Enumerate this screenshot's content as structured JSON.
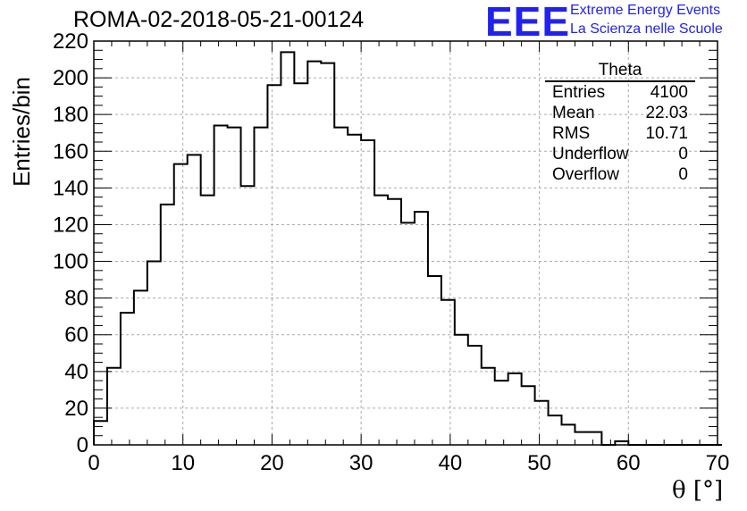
{
  "chart_data": {
    "type": "bar",
    "title": "ROMA-02-2018-05-21-00124",
    "xlabel": "θ [°]",
    "ylabel": "Entries/bin",
    "xlim": [
      0,
      70
    ],
    "ylim": [
      0,
      220
    ],
    "xticks": [
      0,
      10,
      20,
      30,
      40,
      50,
      60,
      70
    ],
    "yticks": [
      0,
      20,
      40,
      60,
      80,
      100,
      120,
      140,
      160,
      180,
      200,
      220
    ],
    "grid": true,
    "bin_width": 1.5,
    "bin_start": 0,
    "values": [
      13,
      42,
      72,
      84,
      100,
      131,
      153,
      158,
      136,
      174,
      173,
      141,
      173,
      196,
      214,
      197,
      209,
      208,
      173,
      169,
      166,
      136,
      134,
      121,
      127,
      92,
      79,
      60,
      54,
      42,
      35,
      39,
      32,
      24,
      16,
      11,
      7,
      7,
      0,
      2,
      0,
      0,
      0,
      0,
      0,
      0,
      0
    ]
  },
  "stats": {
    "name": "Theta",
    "rows": [
      {
        "key": "Entries",
        "value": "4100"
      },
      {
        "key": "Mean",
        "value": "22.03"
      },
      {
        "key": "RMS",
        "value": "10.71"
      },
      {
        "key": "Underflow",
        "value": "0"
      },
      {
        "key": "Overflow",
        "value": "0"
      }
    ]
  },
  "logo": {
    "text": "EEE",
    "line1": "Extreme Energy Events",
    "line2": "La Scienza nelle Scuole",
    "color": "#2222ee"
  },
  "colors": {
    "histogram": "#000000",
    "grid": "#aaaaaa",
    "frame": "#000000"
  }
}
